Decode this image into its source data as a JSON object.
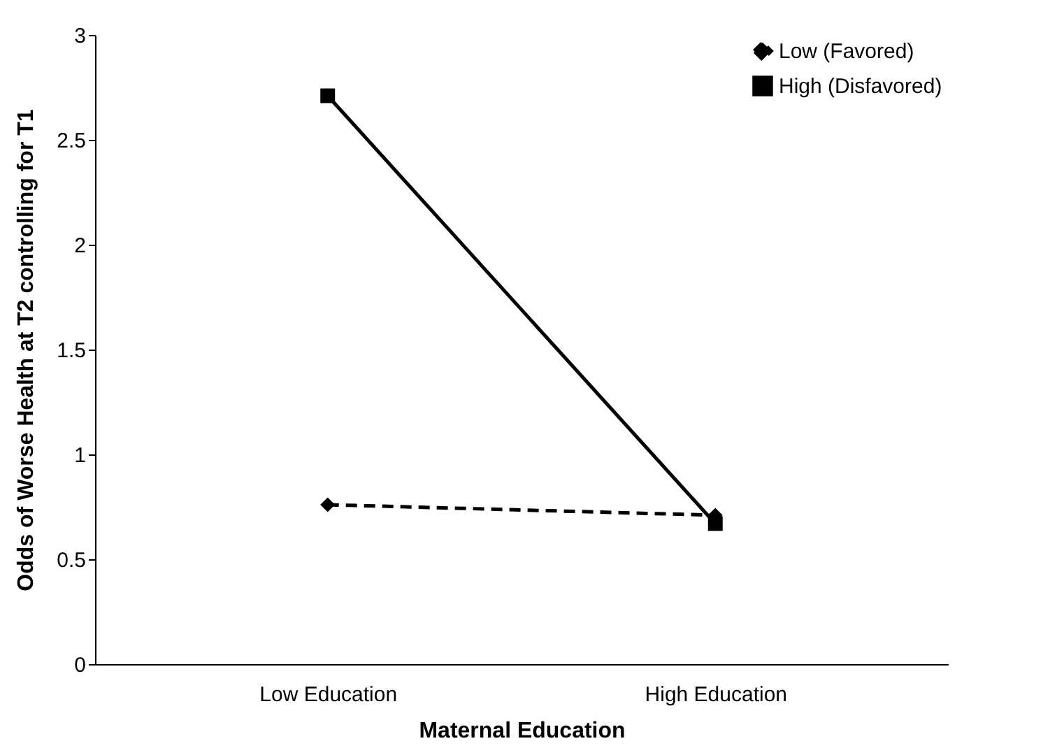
{
  "chart_data": {
    "type": "line",
    "xlabel": "Maternal Education",
    "ylabel": "Odds of Worse Health at T2 controlling for T1",
    "categories": [
      "Low Education",
      "High Education"
    ],
    "series": [
      {
        "name": "Low (Favored)",
        "color": "#000000",
        "values": [
          0.76,
          0.71
        ],
        "marker": "diamond",
        "line_style": "dashed"
      },
      {
        "name": "High (Disfavored)",
        "color": "#000000",
        "values": [
          2.71,
          0.67
        ],
        "marker": "square",
        "line_style": "solid"
      }
    ],
    "ylim": [
      0,
      3
    ],
    "yticks": [
      0,
      0.5,
      1,
      1.5,
      2,
      2.5,
      3
    ],
    "grid": false,
    "legend": "top right"
  }
}
